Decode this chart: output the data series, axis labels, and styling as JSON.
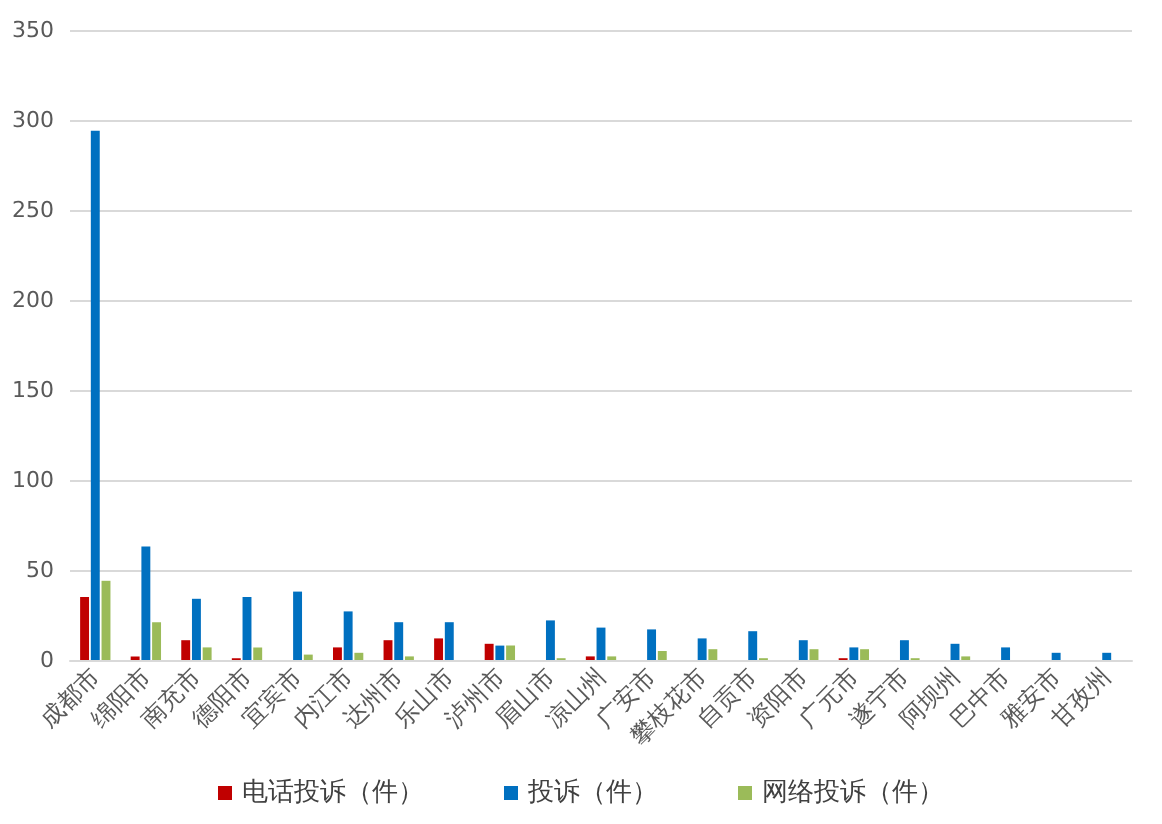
{
  "chart_data": {
    "type": "bar",
    "categories": [
      "成都市",
      "绵阳市",
      "南充市",
      "德阳市",
      "宜宾市",
      "内江市",
      "达州市",
      "乐山市",
      "泸州市",
      "眉山市",
      "凉山州",
      "广安市",
      "攀枝花市",
      "自贡市",
      "资阳市",
      "广元市",
      "遂宁市",
      "阿坝州",
      "巴中市",
      "雅安市",
      "甘孜州"
    ],
    "series": [
      {
        "name": "电话投诉（件）",
        "color": "#c00000",
        "values": [
          35,
          2,
          11,
          1,
          0,
          7,
          11,
          12,
          9,
          0,
          2,
          0,
          0,
          0,
          0,
          1,
          0,
          0,
          0,
          0,
          0
        ]
      },
      {
        "name": "投诉（件）",
        "color": "#0070c0",
        "values": [
          294,
          63,
          34,
          35,
          38,
          27,
          21,
          21,
          8,
          22,
          18,
          17,
          12,
          16,
          11,
          7,
          11,
          9,
          7,
          4,
          4
        ]
      },
      {
        "name": "网络投诉（件）",
        "color": "#9bbb59",
        "values": [
          44,
          21,
          7,
          7,
          3,
          4,
          2,
          0,
          8,
          1,
          2,
          5,
          6,
          1,
          6,
          6,
          1,
          2,
          0,
          0,
          0
        ]
      }
    ],
    "ylim": [
      0,
      350
    ],
    "yticks": [
      0,
      50,
      100,
      150,
      200,
      250,
      300,
      350
    ],
    "grid": "y",
    "legend": "bottom"
  }
}
